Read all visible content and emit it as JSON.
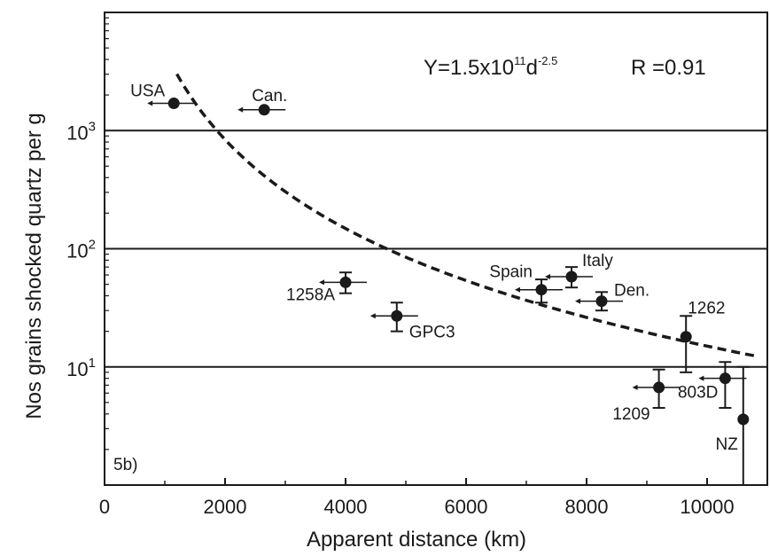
{
  "chart_data": {
    "type": "scatter",
    "panel_label": "5b)",
    "xlabel": "Apparent distance (km)",
    "ylabel": "Nos grains shocked quartz per g",
    "xlim": [
      0,
      11000
    ],
    "ylim": [
      1,
      10000
    ],
    "yscale": "log",
    "x_ticks": [
      "0",
      "2000",
      "4000",
      "6000",
      "8000",
      "10000"
    ],
    "y_ticks": [
      {
        "value": 1000,
        "base": "10",
        "exp": "3"
      },
      {
        "value": 100,
        "base": "10",
        "exp": "2"
      },
      {
        "value": 10,
        "base": "10",
        "exp": "1"
      }
    ],
    "gridlines_y": [
      10,
      100,
      1000
    ],
    "equation": {
      "prefix": "Y=1.5x10",
      "exp1": "11",
      "mid": "d",
      "exp2": "-2.5",
      "r_label": "R =0.91"
    },
    "fit": {
      "a": 150000000000,
      "b": -2.5,
      "x_range": [
        1200,
        10800
      ]
    },
    "points": [
      {
        "label": "USA",
        "x": 1150,
        "y": 1700,
        "err_y": null,
        "arrow": true,
        "label_pos": "left"
      },
      {
        "label": "Can.",
        "x": 2650,
        "y": 1500,
        "err_y": null,
        "arrow": true,
        "label_pos": "top"
      },
      {
        "label": "1258A",
        "x": 4000,
        "y": 52,
        "err_y": [
          42,
          63
        ],
        "arrow": true,
        "label_pos": "left-below"
      },
      {
        "label": "GPC3",
        "x": 4850,
        "y": 27,
        "err_y": [
          20,
          35
        ],
        "arrow": true,
        "label_pos": "right-below"
      },
      {
        "label": "Spain",
        "x": 7250,
        "y": 45,
        "err_y": [
          35,
          55
        ],
        "arrow": true,
        "label_pos": "left-top"
      },
      {
        "label": "Italy",
        "x": 7750,
        "y": 58,
        "err_y": [
          47,
          70
        ],
        "arrow": true,
        "label_pos": "right-top"
      },
      {
        "label": "Den.",
        "x": 8250,
        "y": 36,
        "err_y": [
          30,
          43
        ],
        "arrow": true,
        "label_pos": "right"
      },
      {
        "label": "1262",
        "x": 9650,
        "y": 18,
        "err_y": [
          9,
          27
        ],
        "arrow": false,
        "label_pos": "right-top"
      },
      {
        "label": "1209",
        "x": 9200,
        "y": 6.7,
        "err_y": [
          4.5,
          9.5
        ],
        "arrow": true,
        "label_pos": "left-below"
      },
      {
        "label": "803D",
        "x": 10300,
        "y": 8,
        "err_y": [
          4.5,
          11
        ],
        "arrow": true,
        "label_pos": "left-below"
      },
      {
        "label": "NZ",
        "x": 10600,
        "y": 3.6,
        "err_y": [
          1,
          10
        ],
        "arrow": false,
        "label_pos": "left-below"
      }
    ]
  }
}
